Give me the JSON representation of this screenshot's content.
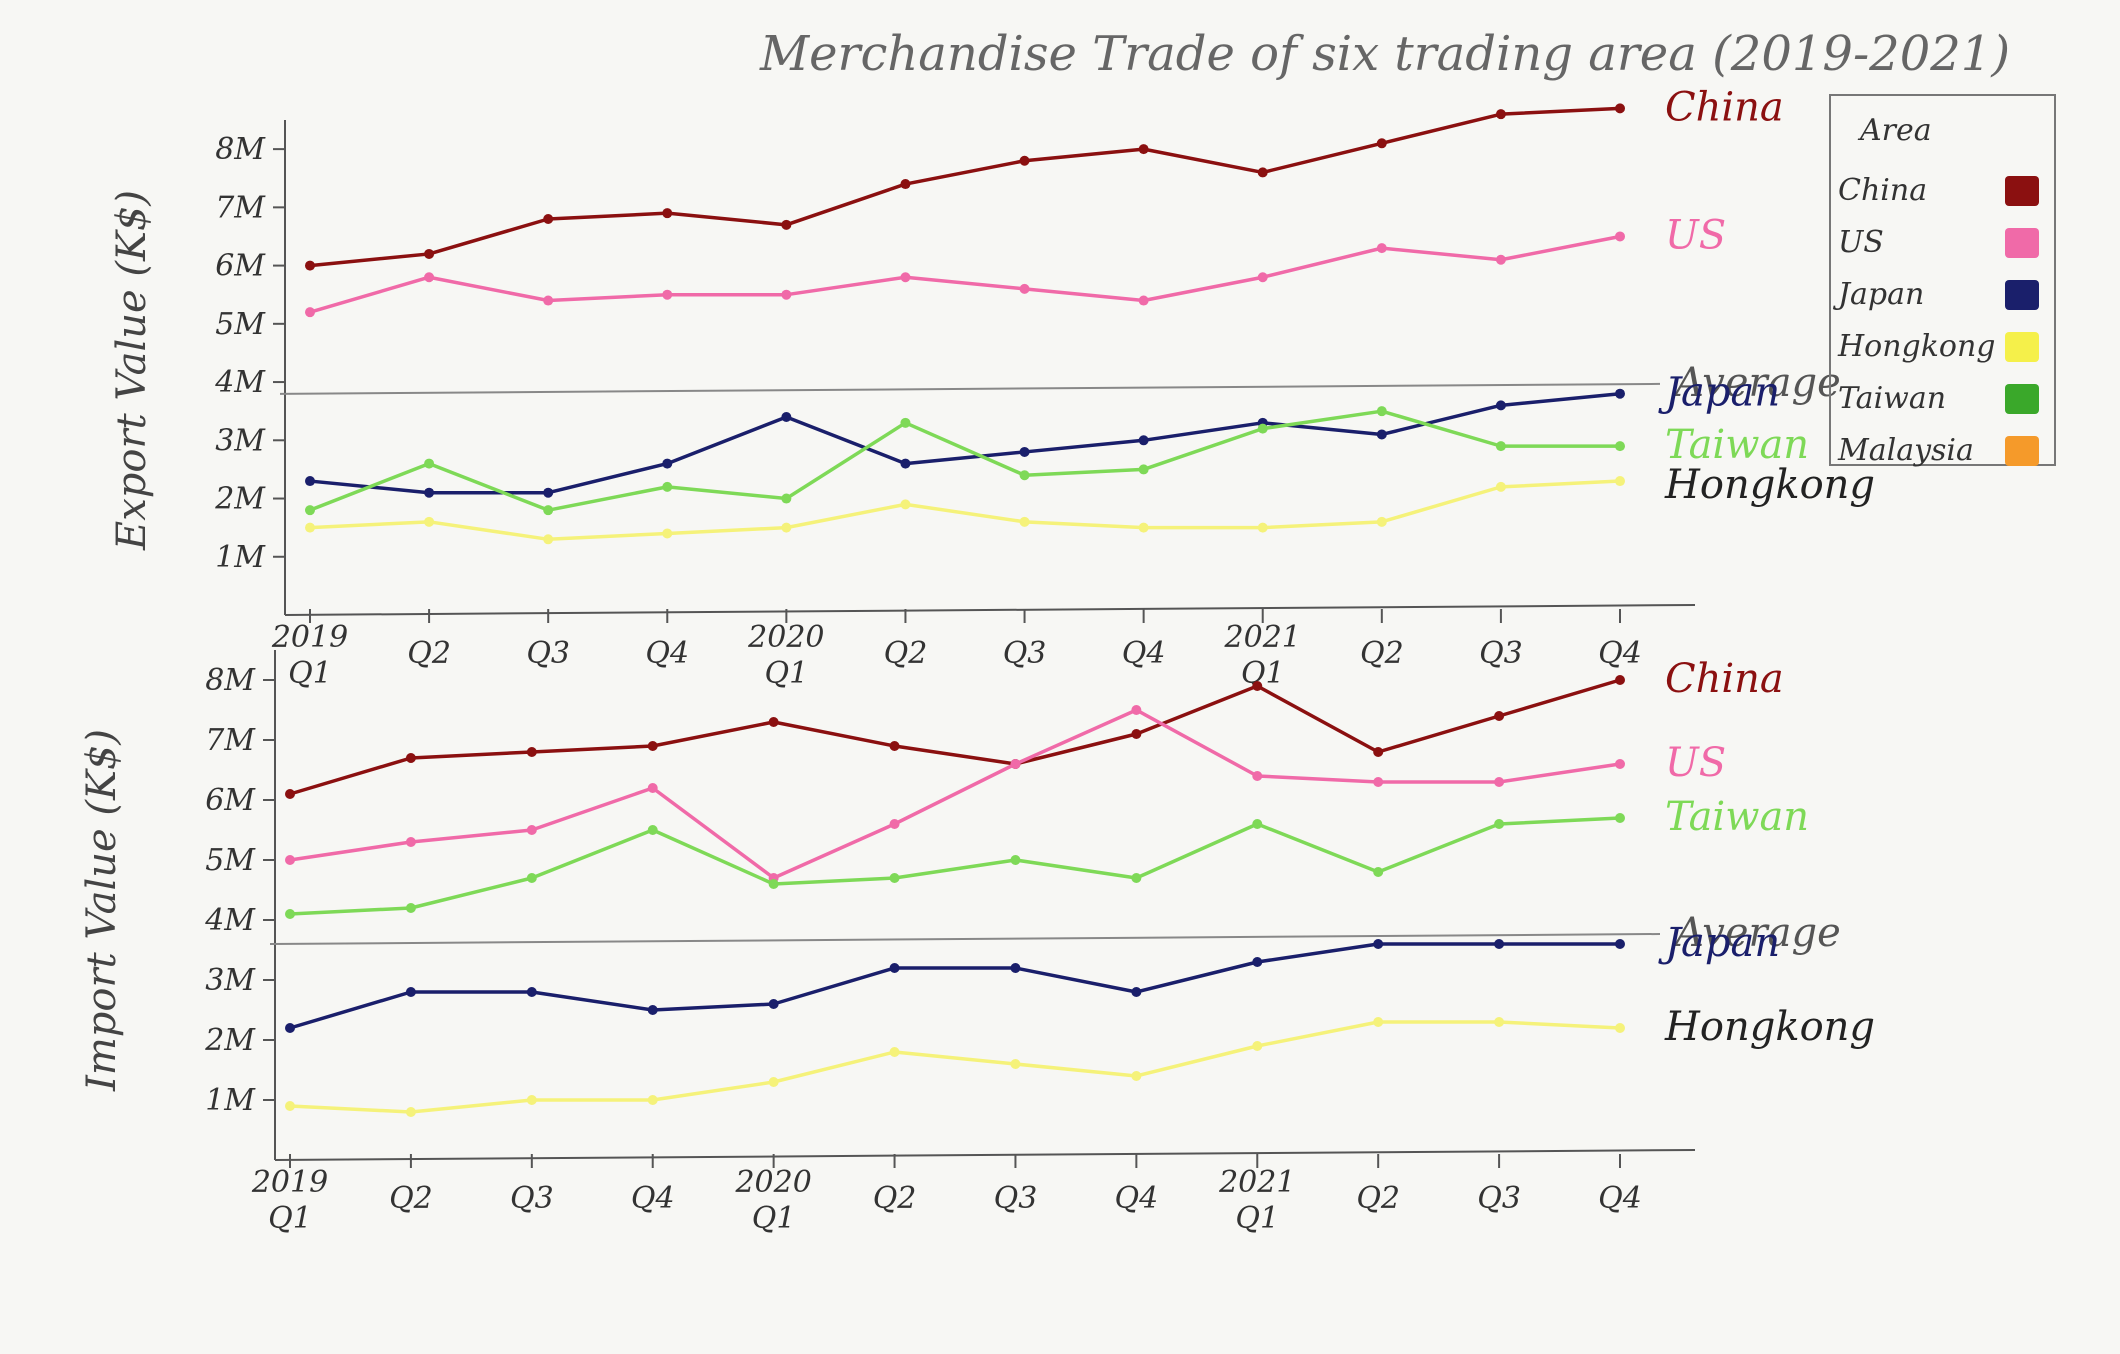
{
  "title": "Merchandise Trade of six trading area (2019-2021)",
  "legend": {
    "title": "Area",
    "placement": "top-right",
    "items": [
      {
        "label": "China",
        "color": "#8b1010"
      },
      {
        "label": "US",
        "color": "#f06aa8"
      },
      {
        "label": "Japan",
        "color": "#1a1f6b"
      },
      {
        "label": "Hongkong",
        "color": "#f5f04a"
      },
      {
        "label": "Taiwan",
        "color": "#3aa82a"
      },
      {
        "label": "Malaysia",
        "color": "#f59a2a"
      }
    ]
  },
  "chart_data": [
    {
      "type": "line",
      "ylabel": "Export Value (K$)",
      "xlabel": "",
      "yticks": [
        "1M",
        "2M",
        "3M",
        "4M",
        "5M",
        "6M",
        "7M",
        "8M"
      ],
      "ylim": [
        0,
        8.5
      ],
      "x": [
        "2019 Q1",
        "Q2",
        "Q3",
        "Q4",
        "2020 Q1",
        "Q2",
        "Q3",
        "Q4",
        "2021 Q1",
        "Q2",
        "Q3",
        "Q4"
      ],
      "xtick_labels": [
        "2019 Q1",
        "Q2",
        "Q3",
        "Q4",
        "2020 Q1",
        "Q2",
        "Q3",
        "Q4",
        "2021 Q1",
        "Q2",
        "Q3",
        "Q4"
      ],
      "average_line": {
        "label": "Average",
        "value": 3.9
      },
      "series": [
        {
          "name": "China",
          "color": "#8b1010",
          "end_label": "China",
          "values": [
            6.0,
            6.2,
            6.8,
            6.9,
            6.7,
            7.4,
            7.8,
            8.0,
            7.6,
            8.1,
            8.6,
            8.7
          ]
        },
        {
          "name": "US",
          "color": "#f06aa8",
          "end_label": "US",
          "values": [
            5.2,
            5.8,
            5.4,
            5.5,
            5.5,
            5.8,
            5.6,
            5.4,
            5.8,
            6.3,
            6.1,
            6.5
          ]
        },
        {
          "name": "Japan",
          "color": "#1a1f6b",
          "end_label": "Japan",
          "values": [
            2.3,
            2.1,
            2.1,
            2.6,
            3.4,
            2.6,
            2.8,
            3.0,
            3.3,
            3.1,
            3.6,
            3.8
          ]
        },
        {
          "name": "Taiwan",
          "color": "#7ed957",
          "end_label": "Taiwan",
          "values": [
            1.8,
            2.6,
            1.8,
            2.2,
            2.0,
            3.3,
            2.4,
            2.5,
            3.2,
            3.5,
            2.9,
            2.9
          ]
        },
        {
          "name": "Hongkong",
          "color": "#f5f27a",
          "end_label": "Hongkong",
          "values": [
            1.5,
            1.6,
            1.3,
            1.4,
            1.5,
            1.9,
            1.6,
            1.5,
            1.5,
            1.6,
            2.2,
            2.3
          ]
        }
      ]
    },
    {
      "type": "line",
      "ylabel": "Import Value (K$)",
      "xlabel": "",
      "yticks": [
        "1M",
        "2M",
        "3M",
        "4M",
        "5M",
        "6M",
        "7M",
        "8M"
      ],
      "ylim": [
        0,
        8.5
      ],
      "x": [
        "2019 Q1",
        "Q2",
        "Q3",
        "Q4",
        "2020 Q1",
        "Q2",
        "Q3",
        "Q4",
        "2021 Q1",
        "Q2",
        "Q3",
        "Q4"
      ],
      "xtick_labels": [
        "2019 Q1",
        "Q2",
        "Q3",
        "Q4",
        "2020 Q1",
        "Q2",
        "Q3",
        "Q4",
        "2021 Q1",
        "Q2",
        "Q3",
        "Q4"
      ],
      "average_line": {
        "label": "Average",
        "value": 3.7
      },
      "series": [
        {
          "name": "China",
          "color": "#8b1010",
          "end_label": "China",
          "values": [
            6.1,
            6.7,
            6.8,
            6.9,
            7.3,
            6.9,
            6.6,
            7.1,
            7.9,
            6.8,
            7.4,
            8.0
          ]
        },
        {
          "name": "US",
          "color": "#f06aa8",
          "end_label": "US",
          "values": [
            5.0,
            5.3,
            5.5,
            6.2,
            4.7,
            5.6,
            6.6,
            7.5,
            6.4,
            6.3,
            6.3,
            6.6
          ]
        },
        {
          "name": "Taiwan",
          "color": "#7ed957",
          "end_label": "Taiwan",
          "values": [
            4.1,
            4.2,
            4.7,
            5.5,
            4.6,
            4.7,
            5.0,
            4.7,
            5.6,
            4.8,
            5.6,
            5.7
          ]
        },
        {
          "name": "Japan",
          "color": "#1a1f6b",
          "end_label": "Japan",
          "values": [
            2.2,
            2.8,
            2.8,
            2.5,
            2.6,
            3.2,
            3.2,
            2.8,
            3.3,
            3.6,
            3.6,
            3.6
          ]
        },
        {
          "name": "Hongkong",
          "color": "#f5f27a",
          "end_label": "Hongkong",
          "values": [
            0.9,
            0.8,
            1.0,
            1.0,
            1.3,
            1.8,
            1.6,
            1.4,
            1.9,
            2.3,
            2.3,
            2.2
          ]
        }
      ]
    }
  ]
}
